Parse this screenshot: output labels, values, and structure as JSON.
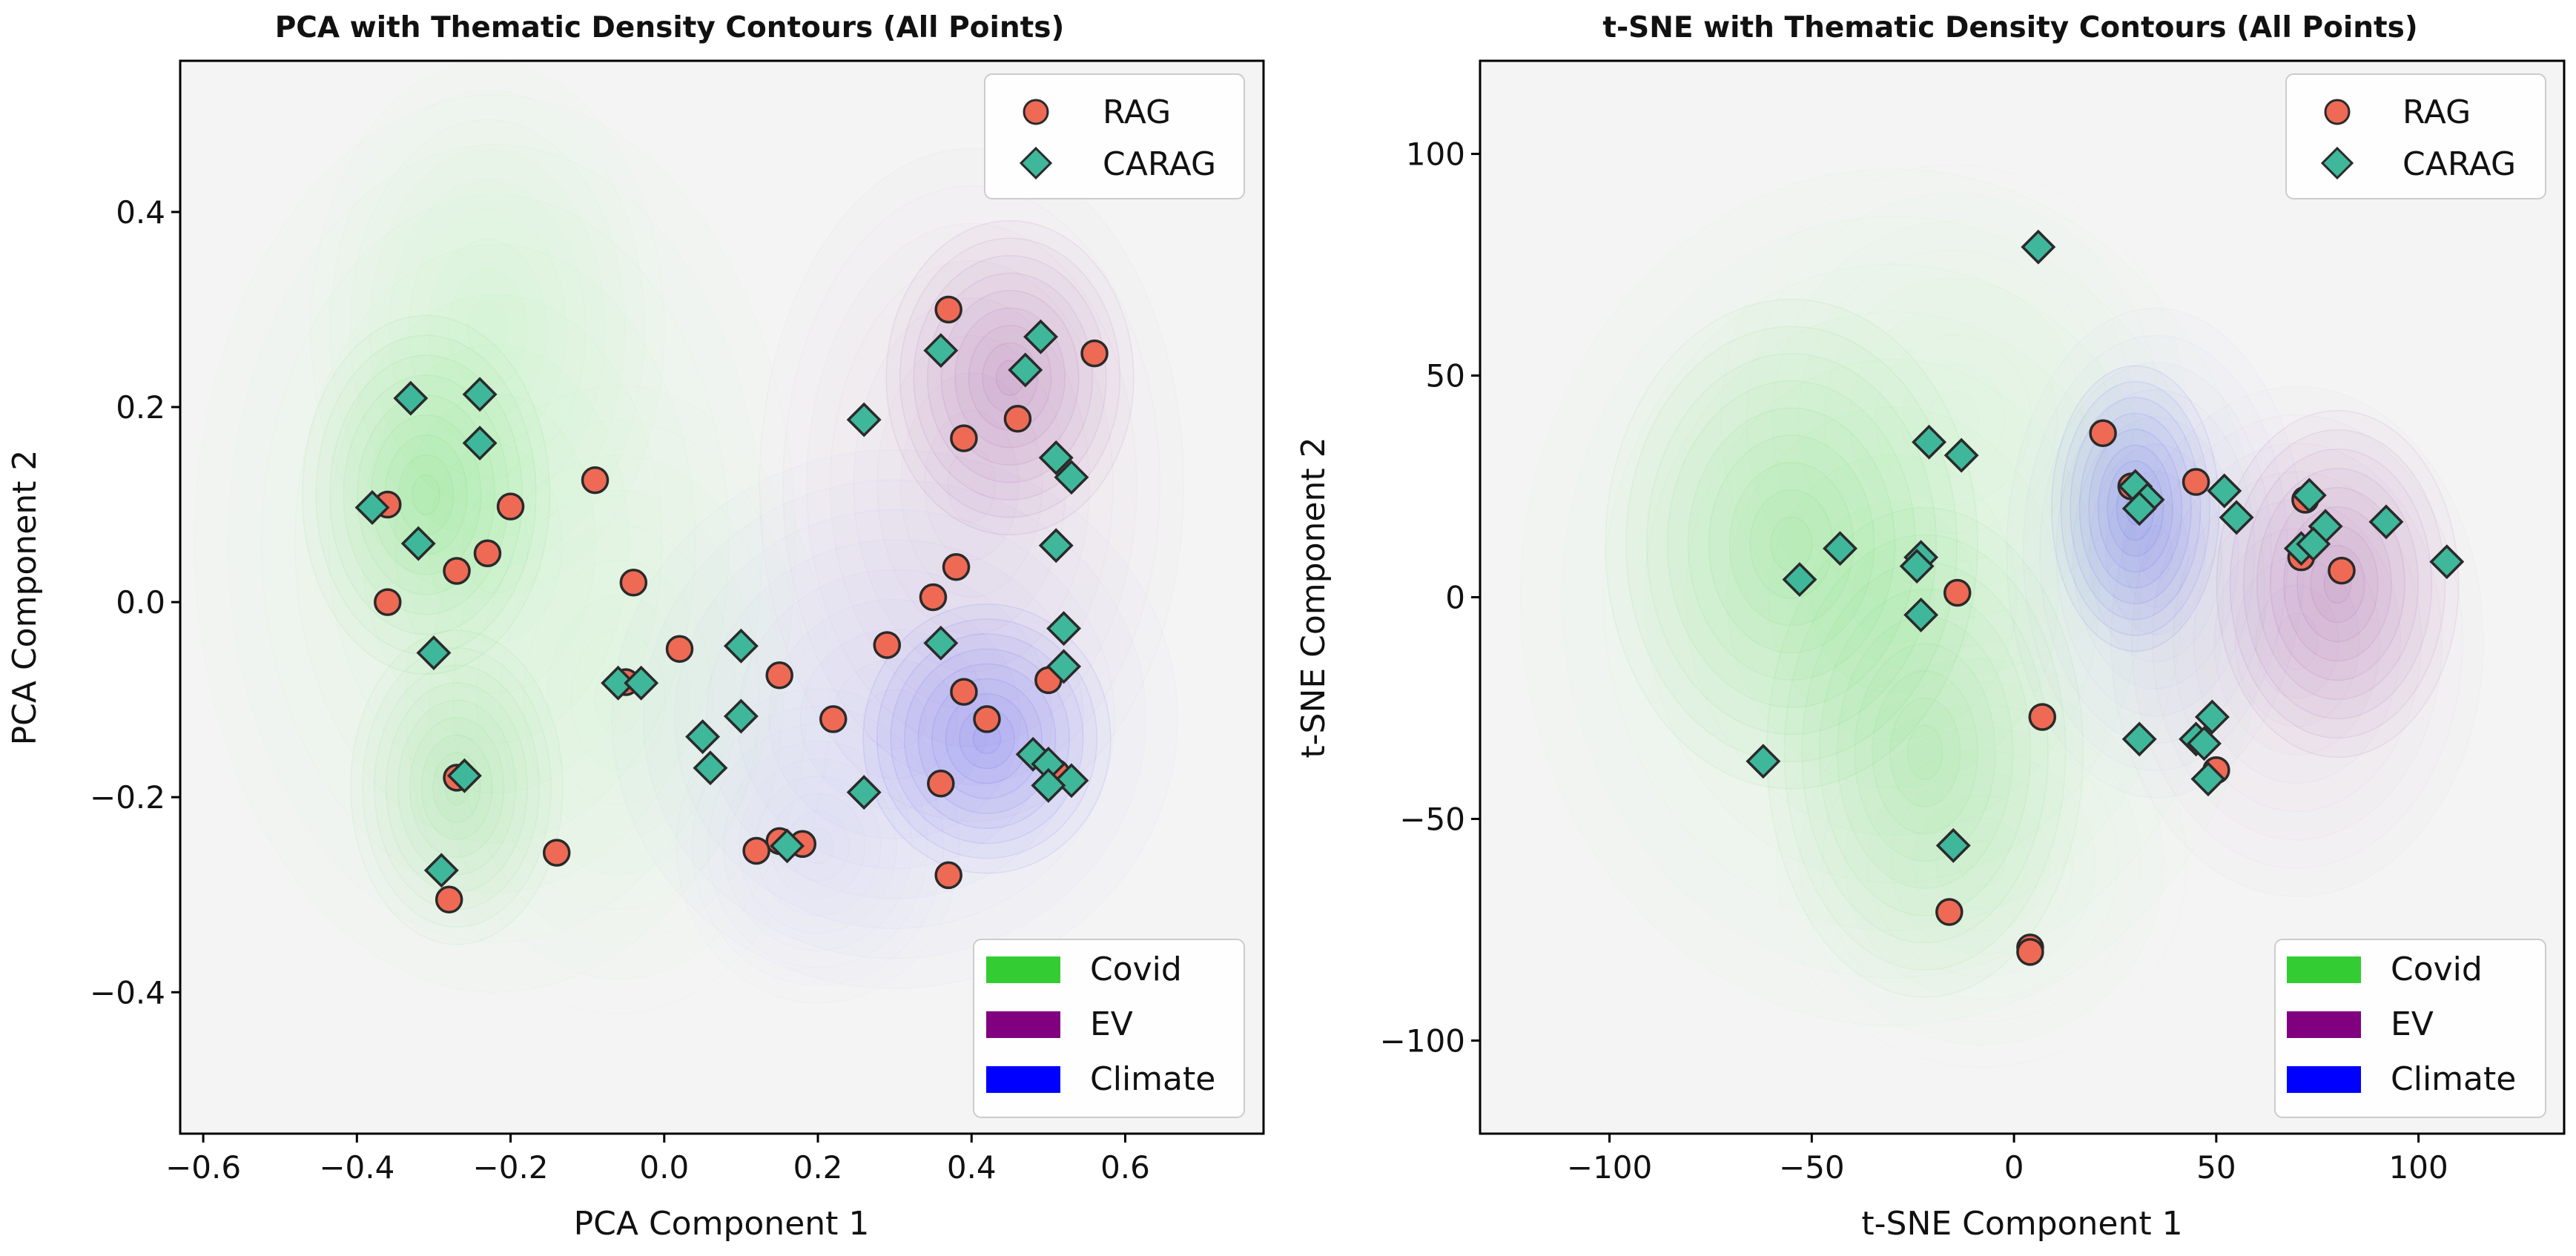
{
  "figure": {
    "background": "#ffffff",
    "panel_bg": "#f4f4f4"
  },
  "colors": {
    "RAG": "#ee6a55",
    "CARAG": "#3fb79a",
    "marker_edge": "#2a2a2a",
    "Covid": "#33cc33",
    "EV": "#800080",
    "Climate": "#0000ff"
  },
  "marker_legend": [
    {
      "label": "RAG",
      "marker": "circle"
    },
    {
      "label": "CARAG",
      "marker": "diamond"
    }
  ],
  "theme_legend": [
    {
      "label": "Covid"
    },
    {
      "label": "EV"
    },
    {
      "label": "Climate"
    }
  ],
  "chart_data": [
    {
      "type": "scatter",
      "title": "PCA with Thematic Density Contours (All Points)",
      "xlabel": "PCA Component 1",
      "ylabel": "PCA Component 2",
      "xlim": [
        -0.63,
        0.78
      ],
      "ylim": [
        -0.545,
        0.555
      ],
      "xticks": [
        -0.6,
        -0.4,
        -0.2,
        0.0,
        0.2,
        0.4,
        0.6
      ],
      "xtick_labels": [
        "−0.6",
        "−0.4",
        "−0.2",
        "0.0",
        "0.2",
        "0.4",
        "0.6"
      ],
      "yticks": [
        -0.4,
        -0.2,
        0.0,
        0.2,
        0.4
      ],
      "ytick_labels": [
        "−0.4",
        "−0.2",
        "0.0",
        "0.2",
        "0.4"
      ],
      "density": [
        {
          "theme": "Covid",
          "blobs": [
            {
              "cx": -0.31,
              "cy": 0.11,
              "sx": 0.07,
              "sy": 0.08,
              "w": 1.0
            },
            {
              "cx": -0.27,
              "cy": -0.19,
              "sx": 0.06,
              "sy": 0.07,
              "w": 0.9
            },
            {
              "cx": -0.22,
              "cy": 0.06,
              "sx": 0.17,
              "sy": 0.2,
              "w": 0.35
            },
            {
              "cx": -0.06,
              "cy": -0.1,
              "sx": 0.12,
              "sy": 0.14,
              "w": 0.25
            },
            {
              "cx": -0.23,
              "cy": 0.28,
              "sx": 0.1,
              "sy": 0.12,
              "w": 0.3
            }
          ]
        },
        {
          "theme": "EV",
          "blobs": [
            {
              "cx": 0.45,
              "cy": 0.23,
              "sx": 0.07,
              "sy": 0.07,
              "w": 1.0
            },
            {
              "cx": 0.4,
              "cy": 0.12,
              "sx": 0.12,
              "sy": 0.15,
              "w": 0.35
            }
          ]
        },
        {
          "theme": "Climate",
          "blobs": [
            {
              "cx": 0.42,
              "cy": -0.14,
              "sx": 0.07,
              "sy": 0.06,
              "w": 1.0
            },
            {
              "cx": 0.3,
              "cy": -0.12,
              "sx": 0.16,
              "sy": 0.12,
              "w": 0.3
            },
            {
              "cx": 0.2,
              "cy": -0.25,
              "sx": 0.08,
              "sy": 0.07,
              "w": 0.2
            }
          ]
        }
      ],
      "series": [
        {
          "name": "RAG",
          "points": [
            [
              0.37,
              0.3
            ],
            [
              0.56,
              0.255
            ],
            [
              0.46,
              0.188
            ],
            [
              0.39,
              0.168
            ],
            [
              -0.09,
              0.125
            ],
            [
              -0.36,
              0.1
            ],
            [
              -0.2,
              0.098
            ],
            [
              -0.23,
              0.05
            ],
            [
              -0.27,
              0.032
            ],
            [
              0.38,
              0.036
            ],
            [
              -0.04,
              0.02
            ],
            [
              0.35,
              0.005
            ],
            [
              -0.36,
              0.0
            ],
            [
              0.02,
              -0.048
            ],
            [
              0.29,
              -0.044
            ],
            [
              0.15,
              -0.075
            ],
            [
              -0.05,
              -0.082
            ],
            [
              0.5,
              -0.08
            ],
            [
              0.39,
              -0.092
            ],
            [
              0.42,
              -0.12
            ],
            [
              0.22,
              -0.12
            ],
            [
              0.51,
              -0.175
            ],
            [
              -0.27,
              -0.18
            ],
            [
              0.36,
              -0.186
            ],
            [
              0.15,
              -0.245
            ],
            [
              0.18,
              -0.248
            ],
            [
              0.12,
              -0.255
            ],
            [
              -0.14,
              -0.257
            ],
            [
              0.37,
              -0.28
            ],
            [
              -0.28,
              -0.305
            ]
          ]
        },
        {
          "name": "CARAG",
          "points": [
            [
              0.49,
              0.272
            ],
            [
              0.36,
              0.258
            ],
            [
              0.47,
              0.238
            ],
            [
              -0.33,
              0.209
            ],
            [
              -0.24,
              0.213
            ],
            [
              0.26,
              0.187
            ],
            [
              -0.24,
              0.163
            ],
            [
              0.51,
              0.148
            ],
            [
              0.53,
              0.128
            ],
            [
              -0.38,
              0.097
            ],
            [
              -0.32,
              0.06
            ],
            [
              0.51,
              0.058
            ],
            [
              0.52,
              -0.027
            ],
            [
              0.1,
              -0.045
            ],
            [
              0.36,
              -0.042
            ],
            [
              -0.3,
              -0.052
            ],
            [
              0.52,
              -0.066
            ],
            [
              -0.06,
              -0.083
            ],
            [
              -0.03,
              -0.083
            ],
            [
              0.1,
              -0.117
            ],
            [
              0.05,
              -0.138
            ],
            [
              0.48,
              -0.156
            ],
            [
              0.06,
              -0.17
            ],
            [
              0.5,
              -0.166
            ],
            [
              -0.26,
              -0.178
            ],
            [
              0.53,
              -0.183
            ],
            [
              0.5,
              -0.188
            ],
            [
              0.26,
              -0.195
            ],
            [
              0.16,
              -0.25
            ],
            [
              -0.29,
              -0.275
            ]
          ]
        }
      ]
    },
    {
      "type": "scatter",
      "title": "t-SNE with Thematic Density Contours (All Points)",
      "xlabel": "t-SNE Component 1",
      "ylabel": "t-SNE Component 2",
      "xlim": [
        -132,
        136
      ],
      "ylim": [
        -121,
        121
      ],
      "xticks": [
        -100,
        -50,
        0,
        50,
        100
      ],
      "xtick_labels": [
        "−100",
        "−50",
        "0",
        "50",
        "100"
      ],
      "yticks": [
        -100,
        -50,
        0,
        50,
        100
      ],
      "ytick_labels": [
        "−100",
        "−50",
        "0",
        "50",
        "100"
      ],
      "density": [
        {
          "theme": "Covid",
          "blobs": [
            {
              "cx": -55,
              "cy": 12,
              "sx": 20,
              "sy": 24,
              "w": 1.0
            },
            {
              "cx": -22,
              "cy": -35,
              "sx": 17,
              "sy": 24,
              "w": 0.9
            },
            {
              "cx": -30,
              "cy": 0,
              "sx": 40,
              "sy": 42,
              "w": 0.35
            },
            {
              "cx": -8,
              "cy": -60,
              "sx": 22,
              "sy": 20,
              "w": 0.25
            },
            {
              "cx": -15,
              "cy": 40,
              "sx": 25,
              "sy": 25,
              "w": 0.25
            }
          ]
        },
        {
          "theme": "EV",
          "blobs": [
            {
              "cx": 80,
              "cy": 3,
              "sx": 13,
              "sy": 17,
              "w": 1.0
            },
            {
              "cx": 70,
              "cy": -10,
              "sx": 20,
              "sy": 25,
              "w": 0.35
            }
          ]
        },
        {
          "theme": "Climate",
          "blobs": [
            {
              "cx": 30,
              "cy": 20,
              "sx": 9,
              "sy": 14,
              "w": 1.0
            },
            {
              "cx": 35,
              "cy": 10,
              "sx": 16,
              "sy": 24,
              "w": 0.35
            }
          ]
        }
      ],
      "series": [
        {
          "name": "RAG",
          "points": [
            [
              22,
              37
            ],
            [
              29,
              25
            ],
            [
              45,
              26
            ],
            [
              72,
              22
            ],
            [
              71,
              9
            ],
            [
              81,
              6
            ],
            [
              -14,
              1
            ],
            [
              7,
              -27
            ],
            [
              50,
              -39
            ],
            [
              -16,
              -71
            ],
            [
              4,
              -79
            ],
            [
              4,
              -80
            ]
          ]
        },
        {
          "name": "CARAG",
          "points": [
            [
              6,
              79
            ],
            [
              -21,
              35
            ],
            [
              -13,
              32
            ],
            [
              30,
              25
            ],
            [
              33,
              22
            ],
            [
              52,
              24
            ],
            [
              73,
              23
            ],
            [
              31,
              20
            ],
            [
              55,
              18
            ],
            [
              77,
              16
            ],
            [
              92,
              17
            ],
            [
              -43,
              11
            ],
            [
              71,
              11
            ],
            [
              74,
              12
            ],
            [
              -23,
              9
            ],
            [
              -24,
              7
            ],
            [
              107,
              8
            ],
            [
              -53,
              4
            ],
            [
              -23,
              -4
            ],
            [
              49,
              -27
            ],
            [
              31,
              -32
            ],
            [
              45,
              -32
            ],
            [
              47,
              -33
            ],
            [
              -62,
              -37
            ],
            [
              48,
              -41
            ],
            [
              -15,
              -56
            ]
          ]
        }
      ]
    }
  ]
}
